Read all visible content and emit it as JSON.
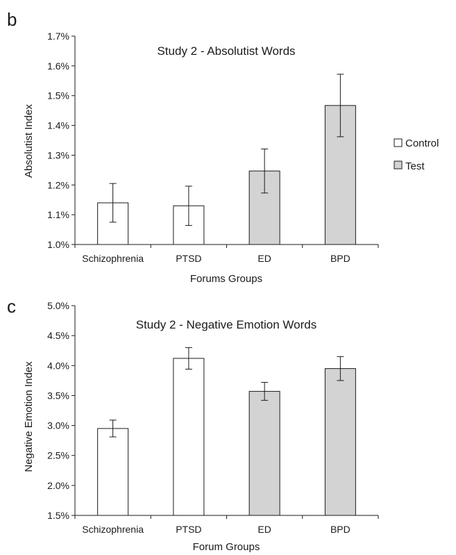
{
  "legend": [
    {
      "label": "Control",
      "color": "#ffffff"
    },
    {
      "label": "Test",
      "color": "#d3d3d3"
    }
  ],
  "chart_data": [
    {
      "panel": "b",
      "type": "bar",
      "title": "Study 2 - Absolutist Words",
      "xlabel": "Forums Groups",
      "ylabel": "Absolutist Index",
      "categories": [
        "Schizophrenia",
        "PTSD",
        "ED",
        "BPD"
      ],
      "groups": [
        "Control",
        "Control",
        "Test",
        "Test"
      ],
      "values": [
        1.14,
        1.13,
        1.247,
        1.467
      ],
      "errors": [
        0.065,
        0.066,
        0.074,
        0.105
      ],
      "ylim": [
        1.0,
        1.7
      ],
      "yticks": [
        1.0,
        1.1,
        1.2,
        1.3,
        1.4,
        1.5,
        1.6,
        1.7
      ],
      "ytick_labels": [
        "1.0%",
        "1.1%",
        "1.2%",
        "1.3%",
        "1.4%",
        "1.5%",
        "1.6%",
        "1.7%"
      ],
      "grid": false,
      "legend_position": "right"
    },
    {
      "panel": "c",
      "type": "bar",
      "title": "Study 2 - Negative Emotion Words",
      "xlabel": "Forum Groups",
      "ylabel": "Negative Emotion Index",
      "categories": [
        "Schizophrenia",
        "PTSD",
        "ED",
        "BPD"
      ],
      "groups": [
        "Control",
        "Control",
        "Test",
        "Test"
      ],
      "values": [
        2.95,
        4.12,
        3.57,
        3.95
      ],
      "errors": [
        0.14,
        0.18,
        0.15,
        0.2
      ],
      "ylim": [
        1.5,
        5.0
      ],
      "yticks": [
        1.5,
        2.0,
        2.5,
        3.0,
        3.5,
        4.0,
        4.5,
        5.0
      ],
      "ytick_labels": [
        "1.5%",
        "2.0%",
        "2.5%",
        "3.0%",
        "3.5%",
        "4.0%",
        "4.5%",
        "5.0%"
      ],
      "grid": false,
      "legend_position": "none"
    }
  ]
}
